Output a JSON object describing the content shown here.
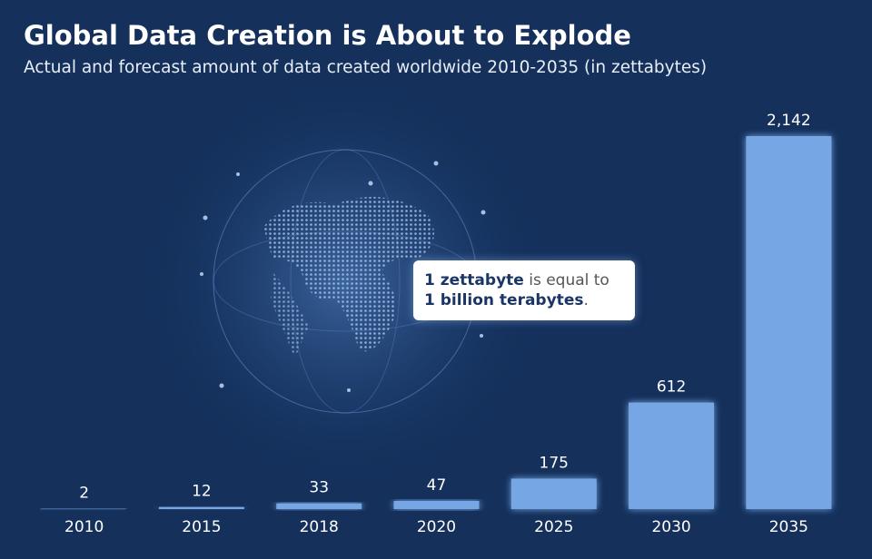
{
  "chart_data": {
    "type": "bar",
    "title": "Global Data Creation is About to Explode",
    "subtitle": "Actual and forecast amount of data created worldwide 2010-2035 (in zettabytes)",
    "categories": [
      "2010",
      "2015",
      "2018",
      "2020",
      "2025",
      "2030",
      "2035"
    ],
    "values": [
      2,
      12,
      33,
      47,
      175,
      612,
      2142
    ],
    "value_labels": [
      "2",
      "12",
      "33",
      "47",
      "175",
      "612",
      "2,142"
    ],
    "color": "#76a6e4",
    "annotation": {
      "line1_bold": "1 zettabyte",
      "line1_rest": "is equal to",
      "line2_bold": "1 billion terabytes",
      "line2_rest": "."
    }
  }
}
